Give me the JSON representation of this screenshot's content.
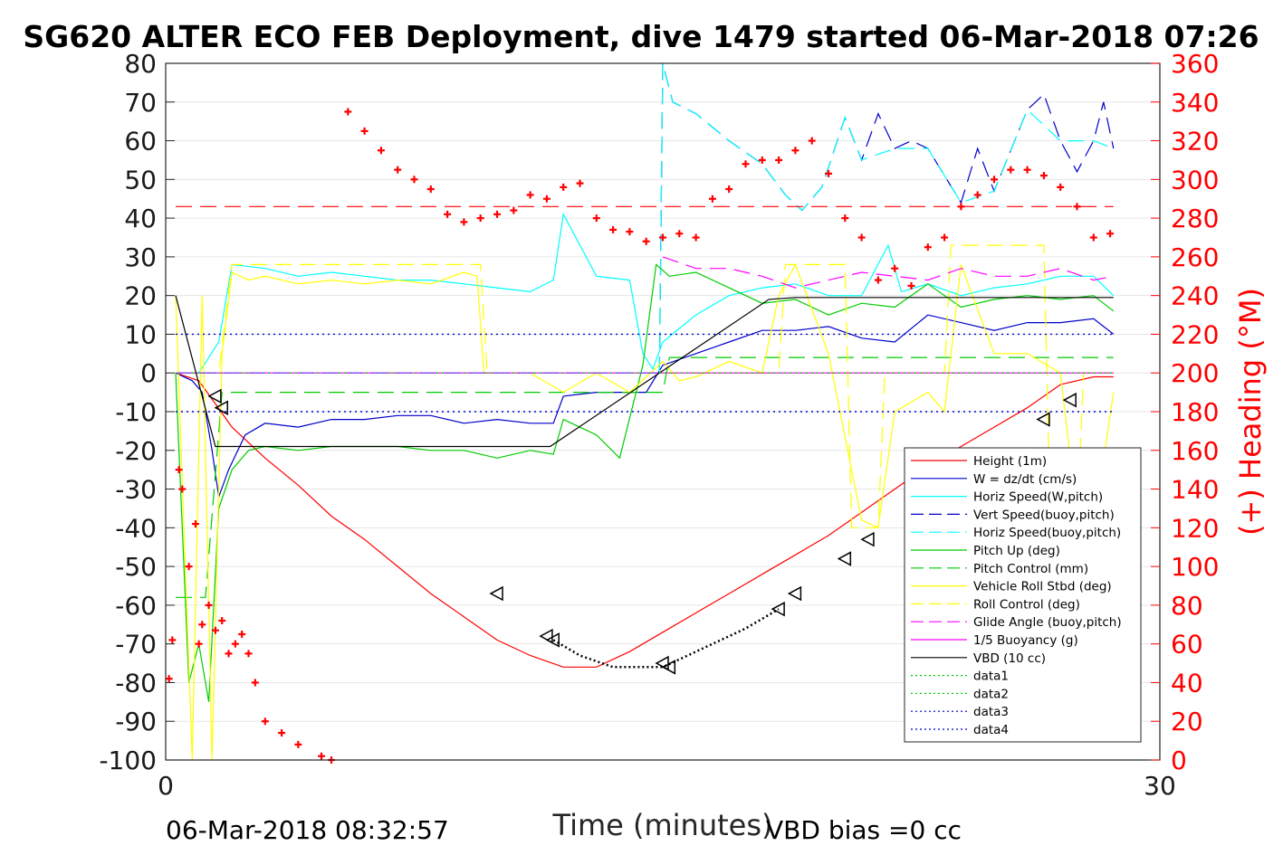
{
  "chart_data": {
    "type": "line",
    "title": "SG620 ALTER ECO FEB Deployment, dive 1479 started 06-Mar-2018 07:26",
    "xlabel": "Time (minutes)",
    "ylabel": "",
    "y2label": "(+) Heading (°M)",
    "xlim": [
      0,
      30
    ],
    "ylim": [
      -100,
      80
    ],
    "y2lim": [
      0,
      360
    ],
    "xticks": [
      "0",
      "30"
    ],
    "yticks": [
      "80",
      "70",
      "60",
      "50",
      "40",
      "30",
      "20",
      "10",
      "0",
      "-10",
      "-20",
      "-30",
      "-40",
      "-50",
      "-60",
      "-70",
      "-80",
      "-90",
      "-100"
    ],
    "y2ticks": [
      "360",
      "340",
      "320",
      "300",
      "280",
      "260",
      "240",
      "220",
      "200",
      "180",
      "160",
      "140",
      "120",
      "100",
      "80",
      "60",
      "40",
      "20",
      "0"
    ],
    "grid": true,
    "legend_position": "lower-right",
    "footer_left": "06-Mar-2018 08:32:57",
    "footer_right": "VBD bias =0 cc",
    "series": [
      {
        "name": "Height (1m)",
        "color": "#ff0000",
        "style": "solid",
        "x": [
          0.3,
          1.0,
          1.5,
          2.0,
          3.0,
          4.0,
          5.0,
          6.0,
          7.0,
          8.0,
          9.0,
          10.0,
          11.0,
          12.0,
          13.0,
          14.0,
          15.0,
          16.0,
          17.0,
          18.0,
          19.0,
          20.0,
          21.0,
          22.0,
          23.0,
          24.0,
          25.0,
          26.0,
          27.0,
          28.0,
          28.6
        ],
        "y": [
          0,
          -2,
          -8,
          -14,
          -22,
          -29,
          -37,
          -43,
          -50,
          -57,
          -63,
          -69,
          -73,
          -76,
          -76,
          -72,
          -67,
          -62,
          -57,
          -52,
          -47,
          -42,
          -36,
          -30,
          -24,
          -19,
          -14,
          -9,
          -3,
          -1,
          -1
        ]
      },
      {
        "name": "W = dz/dt (cm/s)",
        "color": "#0000cc",
        "style": "solid",
        "x": [
          0.3,
          0.8,
          1.1,
          1.4,
          1.6,
          1.9,
          2.4,
          3.0,
          4.0,
          5.0,
          6.0,
          7.0,
          8.0,
          9.0,
          10.0,
          11.0,
          11.7,
          12.0,
          13.0,
          14.0,
          14.5,
          15.0,
          16.0,
          17.0,
          18.0,
          19.0,
          20.0,
          21.0,
          22.0,
          23.0,
          24.0,
          25.0,
          26.0,
          27.0,
          28.0,
          28.6
        ],
        "y": [
          0,
          -2,
          -5,
          -20,
          -32,
          -25,
          -16,
          -13,
          -14,
          -12,
          -12,
          -11,
          -11,
          -13,
          -12,
          -13,
          -13,
          -6,
          -5,
          -5,
          -5,
          2,
          5,
          8,
          11,
          11,
          12,
          9,
          8,
          15,
          13,
          11,
          13,
          13,
          14,
          10
        ]
      },
      {
        "name": "Horiz Speed(W,pitch)",
        "color": "#00ffff",
        "style": "solid",
        "x": [
          0.3,
          1.0,
          1.6,
          2.0,
          3.0,
          4.0,
          5.0,
          6.0,
          7.0,
          8.0,
          9.0,
          10.0,
          11.0,
          11.7,
          12.0,
          13.0,
          14.0,
          14.4,
          14.7,
          15.0,
          16.0,
          17.0,
          18.0,
          19.0,
          20.0,
          21.0,
          21.8,
          22.2,
          23.0,
          24.0,
          25.0,
          26.0,
          27.0,
          28.0,
          28.6
        ],
        "y": [
          0,
          0,
          8,
          28,
          27,
          25,
          26,
          25,
          24,
          24,
          23,
          22,
          21,
          24,
          41,
          25,
          24,
          5,
          1,
          8,
          15,
          20,
          22,
          23,
          20,
          20,
          33,
          21,
          23,
          20,
          22,
          23,
          25,
          25,
          20
        ]
      },
      {
        "name": "Vert Speed(buoy,pitch)",
        "color": "#0000cc",
        "style": "dashed",
        "x": [
          14.9,
          15.0,
          15.3,
          16.0,
          17.0,
          18.0,
          18.7,
          19.2,
          19.8,
          20.5,
          21.0,
          21.5,
          22.0,
          22.5,
          23.0,
          24.0,
          24.5,
          25.0,
          26.0,
          26.5,
          27.0,
          27.5,
          28.0,
          28.3,
          28.6
        ],
        "y": [
          0,
          80,
          70,
          67,
          60,
          54,
          46,
          42,
          48,
          66,
          55,
          67,
          58,
          60,
          58,
          44,
          58,
          47,
          68,
          72,
          60,
          52,
          60,
          70,
          58
        ]
      },
      {
        "name": "Horiz Speed(buoy,pitch)",
        "color": "#00ffff",
        "style": "dashed",
        "x": [
          14.9,
          15.0,
          15.3,
          16.0,
          17.0,
          18.0,
          18.7,
          19.2,
          19.8,
          20.5,
          21.0,
          22.0,
          23.0,
          24.0,
          25.0,
          26.0,
          27.0,
          28.0,
          28.6
        ],
        "y": [
          0,
          80,
          70,
          67,
          60,
          54,
          46,
          42,
          48,
          66,
          55,
          58,
          58,
          44,
          47,
          68,
          60,
          60,
          58
        ]
      },
      {
        "name": "Pitch Up (deg)",
        "color": "#00cc00",
        "style": "solid",
        "x": [
          0.3,
          0.7,
          1.0,
          1.3,
          1.6,
          2.0,
          2.5,
          3.0,
          4.0,
          5.0,
          6.0,
          7.0,
          8.0,
          9.0,
          10.0,
          11.0,
          11.7,
          12.0,
          13.0,
          13.7,
          14.4,
          14.8,
          15.2,
          16.0,
          17.0,
          18.0,
          19.0,
          20.0,
          21.0,
          22.0,
          23.0,
          24.0,
          25.0,
          26.0,
          27.0,
          28.0,
          28.6
        ],
        "y": [
          0,
          -80,
          -70,
          -85,
          -35,
          -25,
          -20,
          -19,
          -20,
          -19,
          -19,
          -19,
          -20,
          -20,
          -22,
          -20,
          -21,
          -12,
          -16,
          -22,
          2,
          28,
          25,
          26,
          22,
          18,
          19,
          15,
          18,
          17,
          23,
          17,
          19,
          20,
          19,
          20,
          16
        ]
      },
      {
        "name": "Pitch Control (mm)",
        "color": "#00cc00",
        "style": "dashed",
        "x": [
          0.3,
          1.2,
          1.7,
          2.0,
          15.0,
          15.2,
          28.6
        ],
        "y": [
          -58,
          -58,
          -5,
          -5,
          -5,
          4,
          4
        ]
      },
      {
        "name": "Vehicle Roll Stbd (deg)",
        "color": "#ffff00",
        "style": "solid",
        "x": [
          0.3,
          0.8,
          1.1,
          1.4,
          1.7,
          2.0,
          2.5,
          3.0,
          4.0,
          5.0,
          6.0,
          7.0,
          8.0,
          9.0,
          9.4,
          9.6,
          10.0,
          11.0,
          12.0,
          13.0,
          14.0,
          15.0,
          15.5,
          16.0,
          17.0,
          18.0,
          18.5,
          19.0,
          20.0,
          21.0,
          21.5,
          22.0,
          23.0,
          23.5,
          24.0,
          25.0,
          26.0,
          27.0,
          27.5,
          28.0,
          28.6
        ],
        "y": [
          20,
          -100,
          20,
          -100,
          5,
          26,
          24,
          25,
          23,
          24,
          23,
          24,
          23,
          26,
          25,
          0,
          0,
          0,
          -5,
          0,
          -5,
          3,
          -2,
          -1,
          3,
          0,
          20,
          28,
          5,
          -38,
          -40,
          -10,
          -5,
          -10,
          28,
          5,
          5,
          0,
          -37,
          -40,
          -5
        ]
      },
      {
        "name": "Roll Control (deg)",
        "color": "#ffff00",
        "style": "dashed",
        "x": [
          0.3,
          1.6,
          2.0,
          9.5,
          9.7,
          15.0,
          15.2,
          18.5,
          18.7,
          20.5,
          20.7,
          21.5,
          21.7,
          23.5,
          23.7,
          26.5,
          26.7,
          27.5,
          27.7,
          28.6
        ],
        "y": [
          0,
          0,
          28,
          28,
          0,
          0,
          0,
          0,
          28,
          28,
          -40,
          -40,
          0,
          0,
          33,
          33,
          -40,
          -40,
          0,
          0
        ]
      },
      {
        "name": "Glide Angle (buoy,pitch)",
        "color": "#ff00ff",
        "style": "dashed",
        "x": [
          15.0,
          16.0,
          17.0,
          18.0,
          19.0,
          20.0,
          21.0,
          22.0,
          23.0,
          24.0,
          25.0,
          26.0,
          27.0,
          28.0,
          28.6
        ],
        "y": [
          30,
          27,
          27,
          25,
          22,
          24,
          26,
          25,
          24,
          27,
          25,
          25,
          27,
          24,
          25
        ]
      },
      {
        "name": "1/5 Buoyancy (g)",
        "color": "#ff00ff",
        "style": "solid",
        "x": [
          0.3,
          28.6
        ],
        "y": [
          0,
          0
        ]
      },
      {
        "name": "VBD (10 cc)",
        "color": "#000000",
        "style": "solid",
        "x": [
          0.3,
          1.5,
          11.6,
          14.9,
          18.2,
          19.0,
          28.6
        ],
        "y": [
          20,
          -19,
          -19,
          0,
          19,
          19.5,
          19.5
        ]
      },
      {
        "name": "data1",
        "color": "#00cc00",
        "style": "dotted",
        "x": [
          0.3,
          28.6
        ],
        "y": [
          0,
          0
        ]
      },
      {
        "name": "data2",
        "color": "#00cc00",
        "style": "dotted",
        "x": [
          0.3,
          28.6
        ],
        "y": [
          0,
          0
        ]
      },
      {
        "name": "data3",
        "color": "#0000cc",
        "style": "dotted",
        "x": [
          0.3,
          28.6
        ],
        "y": [
          10,
          10
        ]
      },
      {
        "name": "data4",
        "color": "#0000cc",
        "style": "dotted",
        "x": [
          0.3,
          28.6
        ],
        "y": [
          -10,
          -10
        ]
      },
      {
        "name": "",
        "color": "#7f3fff",
        "style": "dashed",
        "unlabeled": true,
        "x": [
          0.3,
          14.9
        ],
        "y": [
          0,
          0
        ]
      },
      {
        "name": "",
        "color": "#ff0000",
        "style": "dashed",
        "unlabeled": true,
        "x": [
          0.3,
          28.6
        ],
        "y": [
          43,
          43
        ]
      }
    ],
    "heading_markers": {
      "axis": "right",
      "color": "#ff0000",
      "marker": "+",
      "x": [
        0.1,
        0.2,
        0.4,
        0.5,
        0.7,
        0.9,
        1.0,
        1.1,
        1.3,
        1.5,
        1.7,
        1.9,
        2.1,
        2.3,
        2.5,
        2.7,
        3.0,
        3.5,
        4.0,
        4.7,
        5.0,
        5.5,
        6.0,
        6.5,
        7.0,
        7.5,
        8.0,
        8.5,
        9.0,
        9.5,
        10.0,
        10.5,
        11.0,
        11.5,
        12.0,
        12.5,
        13.0,
        13.5,
        14.0,
        14.5,
        15.0,
        15.5,
        16.0,
        16.5,
        17.0,
        17.5,
        18.0,
        18.5,
        19.0,
        19.5,
        20.0,
        20.5,
        21.0,
        21.5,
        22.0,
        22.5,
        23.0,
        23.5,
        24.0,
        24.5,
        25.0,
        25.5,
        26.0,
        26.5,
        27.0,
        27.5,
        28.0,
        28.5
      ],
      "y": [
        42,
        62,
        150,
        140,
        100,
        122,
        60,
        70,
        80,
        67,
        72,
        55,
        60,
        65,
        55,
        40,
        20,
        14,
        8,
        2,
        0,
        335,
        325,
        315,
        305,
        300,
        295,
        282,
        278,
        280,
        282,
        284,
        292,
        290,
        296,
        298,
        280,
        274,
        273,
        268,
        270,
        272,
        270,
        290,
        295,
        308,
        310,
        310,
        315,
        320,
        303,
        280,
        270,
        248,
        254,
        245,
        265,
        270,
        286,
        292,
        300,
        305,
        305,
        302,
        296,
        286,
        270,
        272
      ]
    },
    "triangle_markers": {
      "color": "#000000",
      "marker": "triangle-left",
      "x": [
        1.5,
        1.7,
        10.0,
        11.5,
        11.7,
        15.0,
        15.2,
        18.5,
        19.0,
        20.5,
        21.2,
        23.0,
        24.0,
        26.5,
        27.3
      ],
      "y": [
        -6,
        -9,
        -57,
        -68,
        -69,
        -75,
        -76,
        -61,
        -57,
        -48,
        -43,
        -31,
        -24,
        -12,
        -7
      ]
    },
    "dense_dotted": {
      "color": "#000000",
      "x": [
        11.7,
        12.5,
        13.5,
        14.5,
        15.0,
        15.5,
        16.5,
        17.5,
        18.5
      ],
      "y": [
        -69,
        -73,
        -76,
        -76,
        -76,
        -74,
        -70,
        -66,
        -61
      ]
    }
  }
}
